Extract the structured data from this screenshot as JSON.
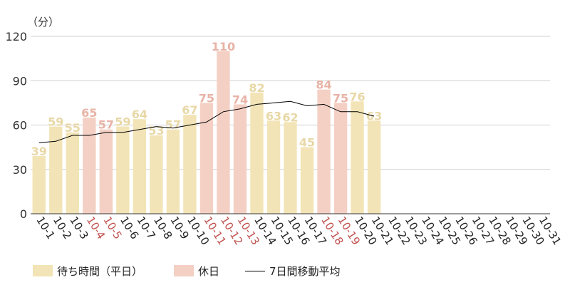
{
  "chart_data": {
    "type": "bar",
    "ylabel": "（分）",
    "ylim": [
      0,
      120
    ],
    "yticks": [
      0,
      30,
      60,
      90,
      120
    ],
    "grid": true,
    "legend_position": "bottom",
    "categories": [
      "10-1",
      "10-2",
      "10-3",
      "10-4",
      "10-5",
      "10-6",
      "10-7",
      "10-8",
      "10-9",
      "10-10",
      "10-11",
      "10-12",
      "10-13",
      "10-14",
      "10-15",
      "10-16",
      "10-17",
      "10-18",
      "10-19",
      "10-20",
      "10-21",
      "10-22",
      "10-23",
      "10-24",
      "10-25",
      "10-26",
      "10-27",
      "10-28",
      "10-29",
      "10-30",
      "10-31"
    ],
    "holidays": [
      "10-4",
      "10-5",
      "10-11",
      "10-12",
      "10-13",
      "10-18",
      "10-19"
    ],
    "values": [
      39,
      59,
      55,
      65,
      57,
      59,
      64,
      53,
      57,
      67,
      75,
      110,
      74,
      82,
      63,
      62,
      45,
      84,
      75,
      76,
      63,
      null,
      null,
      null,
      null,
      null,
      null,
      null,
      null,
      null,
      null
    ],
    "moving_average": [
      48,
      49,
      53,
      53,
      55,
      55,
      57,
      59,
      58,
      60,
      62,
      69,
      71,
      74,
      75,
      76,
      73,
      74,
      69,
      69,
      66,
      null,
      null,
      null,
      null,
      null,
      null,
      null,
      null,
      null,
      null
    ],
    "series": [
      {
        "name": "待ち時間（平日）",
        "color": "#f2e4b6"
      },
      {
        "name": "休日",
        "color": "#f4d0c4"
      },
      {
        "name": "7日間移動平均",
        "color": "#000000"
      }
    ],
    "colors": {
      "weekday_bar": "#f2e4b6",
      "holiday_bar": "#f4d0c4",
      "weekday_label": "#e8d8a6",
      "holiday_label": "#e8b3a6",
      "holiday_tick": "#c0504d",
      "weekday_tick": "#222222",
      "grid": "#cfcfcf",
      "axis": "#333333"
    }
  },
  "legend": {
    "weekday": "待ち時間（平日）",
    "holiday": "休日",
    "average": "7日間移動平均"
  }
}
